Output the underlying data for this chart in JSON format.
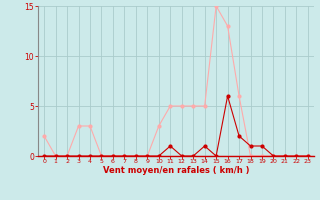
{
  "title": "",
  "xlabel": "Vent moyen/en rafales ( km/h )",
  "ylabel": "",
  "background_color": "#cceaea",
  "grid_color": "#aacccc",
  "line1_color": "#ffaaaa",
  "line2_color": "#cc0000",
  "x": [
    0,
    1,
    2,
    3,
    4,
    5,
    6,
    7,
    8,
    9,
    10,
    11,
    12,
    13,
    14,
    15,
    16,
    17,
    18,
    19,
    20,
    21,
    22,
    23
  ],
  "y_rafales": [
    2,
    0,
    0,
    3,
    3,
    0,
    0,
    0,
    0,
    0,
    3,
    5,
    5,
    5,
    5,
    15,
    13,
    6,
    0,
    0,
    0,
    0,
    0,
    0
  ],
  "y_moyen": [
    0,
    0,
    0,
    0,
    0,
    0,
    0,
    0,
    0,
    0,
    0,
    1,
    0,
    0,
    1,
    0,
    6,
    2,
    1,
    1,
    0,
    0,
    0,
    0
  ],
  "ylim": [
    0,
    15
  ],
  "yticks": [
    0,
    5,
    10,
    15
  ],
  "xlim": [
    -0.5,
    23.5
  ],
  "marker_size": 2,
  "linewidth": 0.8,
  "xlabel_color": "#cc0000",
  "tick_color": "#cc0000",
  "axis_color": "#cc0000"
}
